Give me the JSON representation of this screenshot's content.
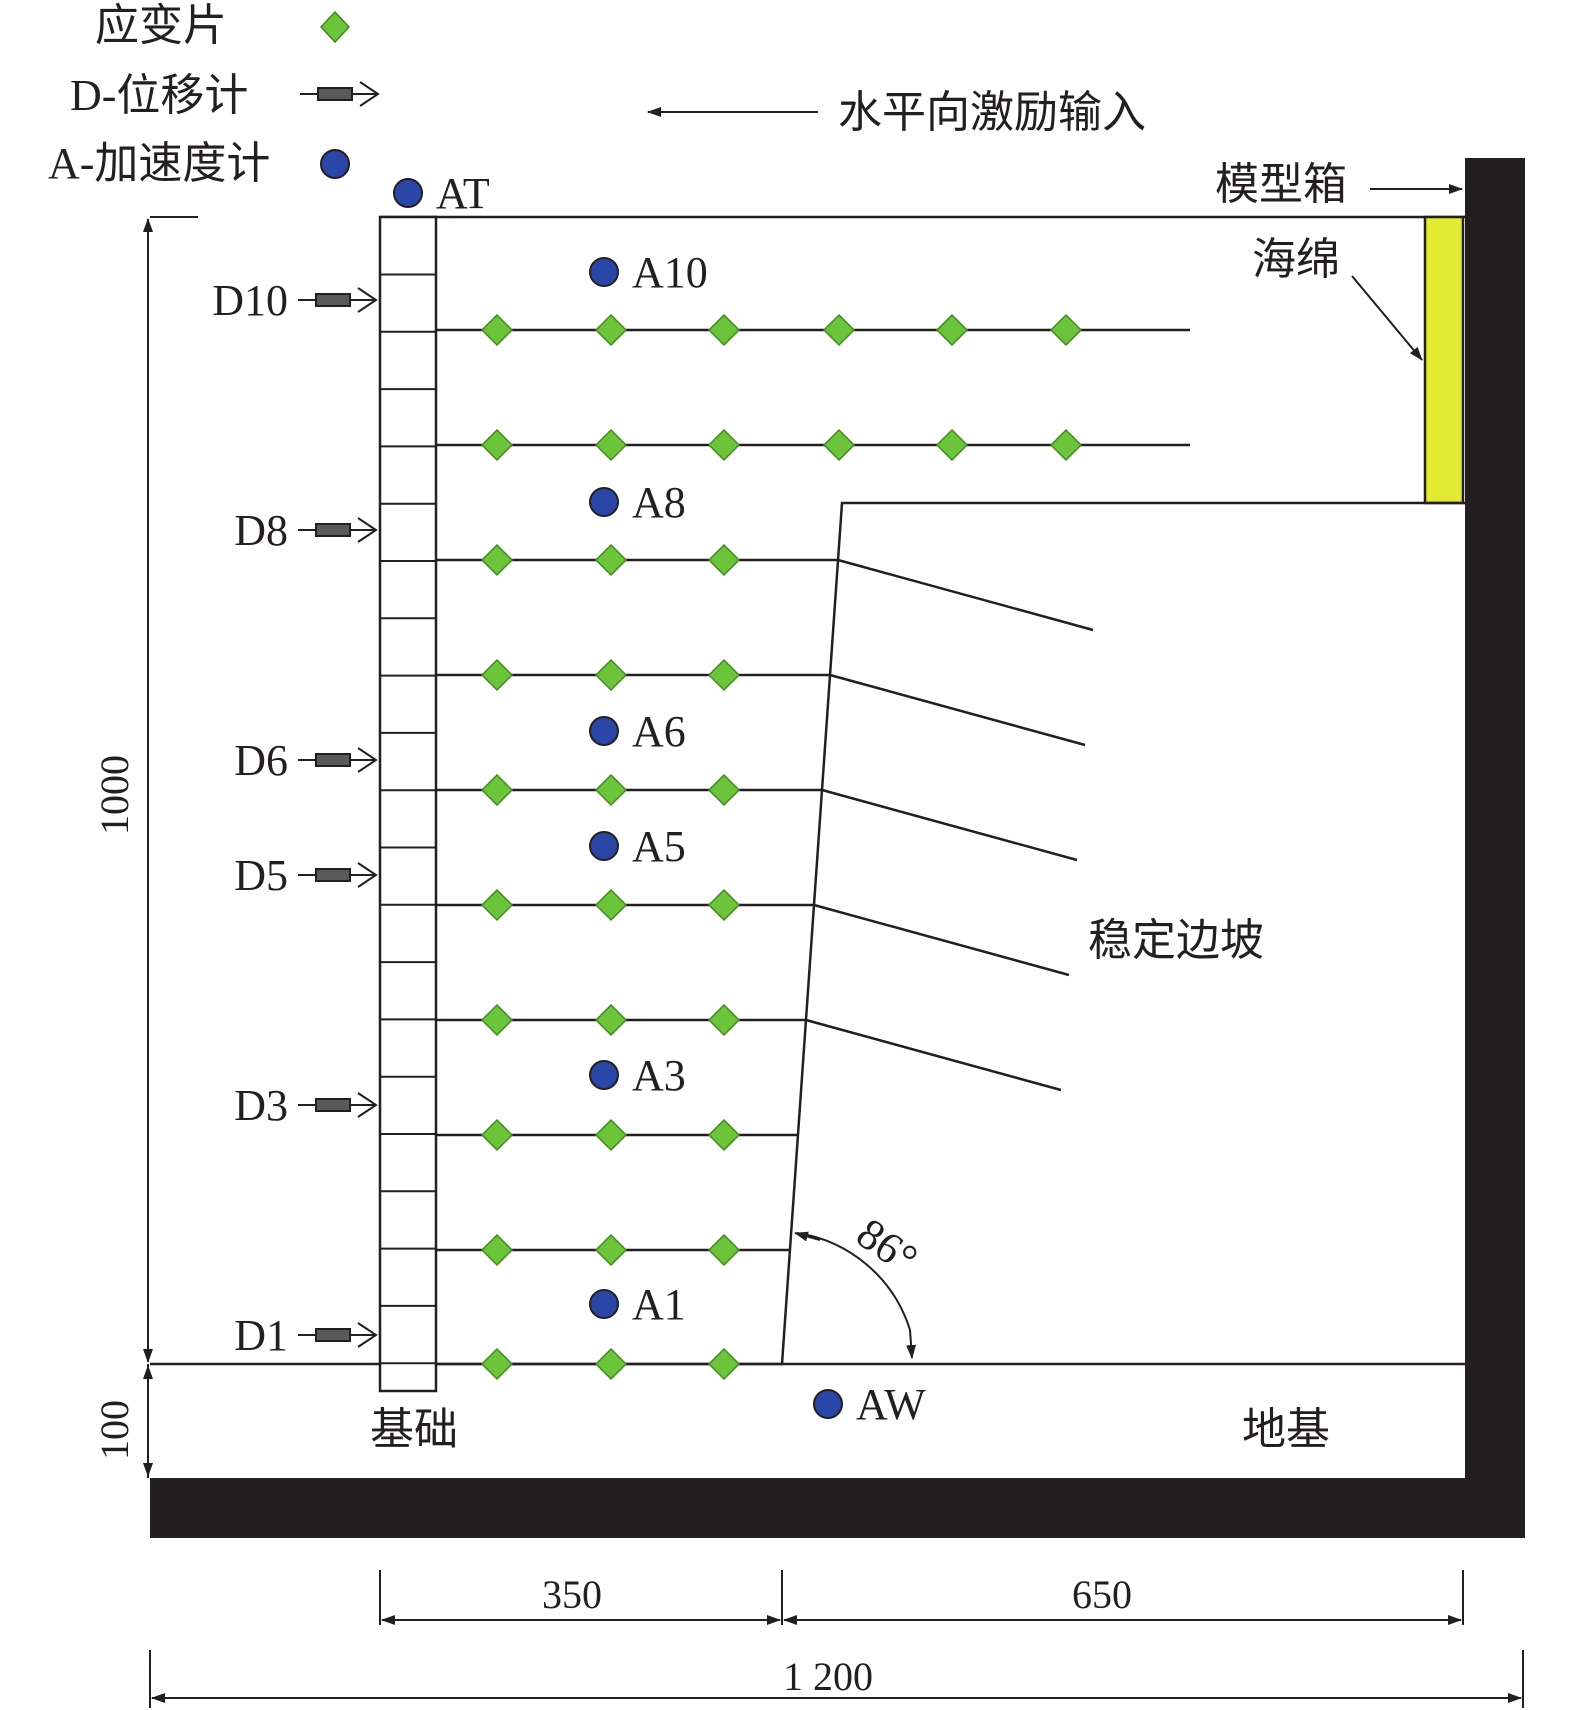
{
  "legend": {
    "strain_gauge": "应变片",
    "displacement_meter": "D-位移计",
    "accelerometer": "A-加速度计"
  },
  "input_label": "水平向激励输入",
  "labels": {
    "model_box": "模型箱",
    "sponge": "海绵",
    "stable_slope": "稳定边坡",
    "foundation": "基础",
    "subgrade": "地基",
    "angle": "86°"
  },
  "accelerometers": [
    "AT",
    "A10",
    "A8",
    "A6",
    "A5",
    "A3",
    "A1",
    "AW"
  ],
  "displacement_meters": [
    "D10",
    "D8",
    "D6",
    "D5",
    "D3",
    "D1"
  ],
  "dimensions": {
    "height_main": "1000",
    "height_base": "100",
    "width_left": "350",
    "width_right": "650",
    "width_total": "1 200"
  },
  "colors": {
    "gauge": "#6cc43a",
    "accelerometer": "#2a47a8",
    "sponge": "#e2ea32",
    "wall": "#231f20"
  }
}
